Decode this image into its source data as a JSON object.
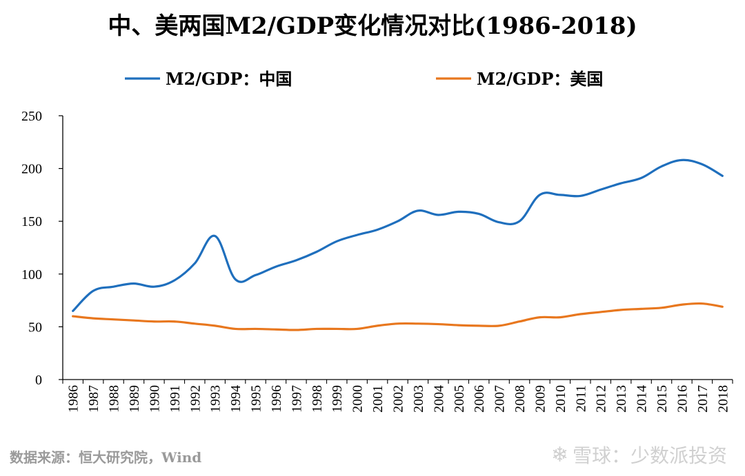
{
  "chart_data": {
    "type": "line",
    "title": "中、美两国M2/GDP变化情况对比(1986-2018)",
    "xlabel": "",
    "ylabel": "",
    "ylim": [
      0,
      250
    ],
    "yticks": [
      0,
      50,
      100,
      150,
      200,
      250
    ],
    "grid": false,
    "legend_position": "top",
    "categories": [
      "1986",
      "1987",
      "1988",
      "1989",
      "1990",
      "1991",
      "1992",
      "1993",
      "1994",
      "1995",
      "1996",
      "1997",
      "1998",
      "1999",
      "2000",
      "2001",
      "2002",
      "2003",
      "2004",
      "2005",
      "2006",
      "2007",
      "2008",
      "2009",
      "2010",
      "2011",
      "2012",
      "2013",
      "2014",
      "2015",
      "2016",
      "2017",
      "2018"
    ],
    "series": [
      {
        "name": "M2/GDP：中国",
        "color": "#1f6fbd",
        "values": [
          65,
          84,
          88,
          91,
          88,
          94,
          110,
          136,
          95,
          99,
          107,
          113,
          121,
          131,
          137,
          142,
          150,
          160,
          156,
          159,
          157,
          149,
          150,
          175,
          175,
          174,
          180,
          186,
          191,
          202,
          208,
          204,
          193
        ]
      },
      {
        "name": "M2/GDP：美国",
        "color": "#e8771e",
        "values": [
          60,
          58,
          57,
          56,
          55,
          55,
          53,
          51,
          48,
          48,
          47.5,
          47,
          48,
          48,
          48,
          51,
          53,
          53,
          52.5,
          51.5,
          51,
          51,
          55,
          59,
          59,
          62,
          64,
          66,
          67,
          68,
          71,
          72,
          69
        ]
      }
    ]
  },
  "footer": {
    "source": "数据来源：恒大研究院，Wind",
    "watermark_icon": "snowball-icon",
    "watermark": "雪球：少数派投资"
  }
}
